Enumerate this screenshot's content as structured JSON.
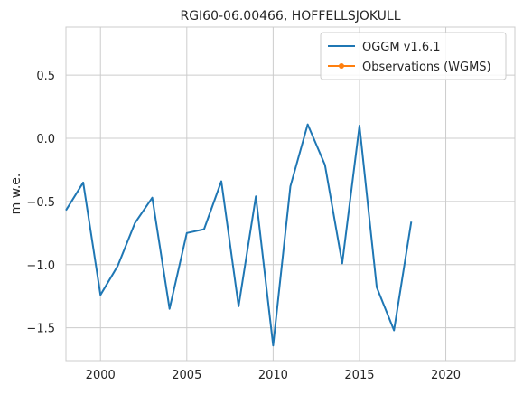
{
  "chart_data": {
    "type": "line",
    "title": "RGI60-06.00466, HOFFELLSJOKULL",
    "xlabel": "",
    "ylabel": "m w.e.",
    "xlim": [
      1998,
      2024
    ],
    "ylim": [
      -1.76,
      0.88
    ],
    "x_ticks": [
      2000,
      2005,
      2010,
      2015,
      2020
    ],
    "y_ticks": [
      -1.5,
      -1.0,
      -0.5,
      0.0,
      0.5
    ],
    "y_tick_labels": [
      "−1.5",
      "−1.0",
      "−0.5",
      "0.0",
      "0.5"
    ],
    "grid": true,
    "legend_position": "top-right",
    "series": [
      {
        "name": "OGGM v1.6.1",
        "color": "#1f77b4",
        "marker": "none",
        "x": [
          1998,
          1999,
          2000,
          2001,
          2002,
          2003,
          2004,
          2005,
          2006,
          2007,
          2008,
          2009,
          2010,
          2011,
          2012,
          2013,
          2014,
          2015,
          2016,
          2017,
          2018
        ],
        "y": [
          -0.57,
          -0.35,
          -1.24,
          -1.01,
          -0.67,
          -0.47,
          -1.35,
          -0.75,
          -0.72,
          -0.34,
          -1.33,
          -0.46,
          -1.64,
          -0.38,
          0.11,
          -0.21,
          -0.99,
          0.1,
          -1.18,
          -1.52,
          -0.66
        ]
      },
      {
        "name": "Observations (WGMS)",
        "color": "#ff7f0e",
        "marker": "circle",
        "x": [],
        "y": []
      }
    ]
  }
}
